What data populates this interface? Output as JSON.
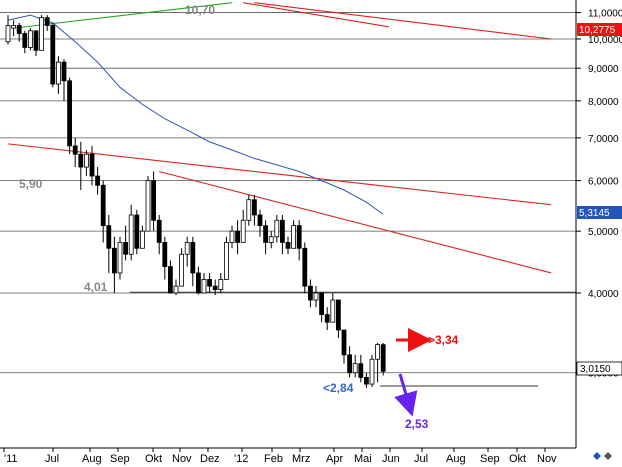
{
  "chart_data": {
    "type": "candlestick",
    "scale": "log",
    "grid": "horizontal",
    "colors": {
      "background": "#ffffff",
      "frame": "#000000",
      "grid": "#555555",
      "trend_red": "#dd2222",
      "trend_green": "#22aa22",
      "ma": "#3355bb",
      "candle": "#000000",
      "target_up": "#ee1111",
      "target_down": "#6622ee",
      "label_blue": "#3366cc",
      "gray_label": "#888888",
      "last_box": "#ee1111",
      "ma_box": "#2255bb",
      "current_box": "#ffffff"
    },
    "y_ticks": [
      "11,0000",
      "10,0000",
      "9,0000",
      "8,0000",
      "7,0000",
      "6,0000",
      "5,0000",
      "4,0000",
      "3,0000"
    ],
    "y_tick_values": [
      11,
      10,
      9,
      8,
      7,
      6,
      5,
      4,
      3
    ],
    "x_labels": [
      "'11",
      "Jul",
      "Aug",
      "Sep",
      "Okt",
      "Nov",
      "Dez",
      "'12",
      "Feb",
      "Mrz",
      "Apr",
      "Mai",
      "Jun",
      "Jul",
      "Aug",
      "Sep",
      "Okt",
      "Nov"
    ],
    "levels": [
      {
        "label": "10,70",
        "value": 10.7
      },
      {
        "label": "5,90",
        "value": 5.9
      },
      {
        "label": "4,01",
        "value": 4.01
      }
    ],
    "targets": {
      "up": "->3,34",
      "down": "2,53",
      "support": "<2,84"
    },
    "last_values": {
      "red": "10,2775",
      "blue": "5,3145",
      "current": "3,0150"
    },
    "weeks": 77,
    "candles": [
      [
        9.9,
        10.5,
        10.9,
        9.8
      ],
      [
        10.4,
        10.5,
        10.7,
        10.1
      ],
      [
        10.5,
        10.2,
        10.6,
        9.9
      ],
      [
        10.2,
        9.7,
        10.3,
        9.5
      ],
      [
        9.7,
        10.3,
        10.4,
        9.6
      ],
      [
        10.3,
        9.6,
        10.3,
        9.4
      ],
      [
        9.6,
        10.8,
        10.9,
        9.6
      ],
      [
        10.8,
        10.5,
        10.9,
        10.3
      ],
      [
        10.5,
        8.5,
        10.6,
        8.4
      ],
      [
        8.5,
        9.2,
        9.4,
        8.2
      ],
      [
        9.2,
        8.6,
        9.3,
        8.0
      ],
      [
        8.6,
        6.8,
        8.7,
        6.6
      ],
      [
        6.8,
        6.6,
        7.0,
        6.3
      ],
      [
        6.6,
        6.3,
        6.9,
        5.8
      ],
      [
        6.3,
        6.6,
        6.7,
        6.1
      ],
      [
        6.6,
        6.1,
        6.8,
        5.9
      ],
      [
        6.1,
        5.9,
        6.3,
        5.7
      ],
      [
        5.9,
        5.1,
        6.0,
        4.8
      ],
      [
        5.1,
        4.7,
        5.3,
        4.3
      ],
      [
        4.7,
        4.3,
        4.9,
        4.0
      ],
      [
        4.3,
        4.8,
        4.9,
        4.2
      ],
      [
        4.8,
        4.6,
        5.1,
        4.5
      ],
      [
        4.6,
        5.3,
        5.5,
        4.5
      ],
      [
        5.3,
        4.7,
        5.4,
        4.6
      ],
      [
        4.7,
        5.0,
        5.1,
        4.7
      ],
      [
        5.0,
        6.0,
        6.1,
        5.0
      ],
      [
        6.0,
        5.2,
        6.2,
        5.0
      ],
      [
        5.2,
        4.8,
        5.3,
        4.6
      ],
      [
        4.8,
        4.4,
        4.9,
        4.2
      ],
      [
        4.4,
        4.0,
        4.5,
        4.0
      ],
      [
        4.0,
        4.1,
        4.2,
        3.97
      ],
      [
        4.1,
        4.6,
        4.7,
        4.1
      ],
      [
        4.6,
        4.8,
        4.9,
        4.4
      ],
      [
        4.8,
        4.3,
        4.9,
        4.1
      ],
      [
        4.3,
        4.0,
        4.4,
        3.98
      ],
      [
        4.0,
        4.2,
        4.3,
        4.0
      ],
      [
        4.2,
        4.1,
        4.3,
        4.0
      ],
      [
        4.1,
        4.05,
        4.2,
        3.97
      ],
      [
        4.05,
        4.2,
        4.3,
        4.0
      ],
      [
        4.2,
        4.8,
        4.9,
        4.2
      ],
      [
        4.8,
        5.0,
        5.1,
        4.7
      ],
      [
        5.0,
        4.8,
        5.2,
        4.6
      ],
      [
        4.8,
        5.2,
        5.4,
        4.8
      ],
      [
        5.2,
        5.6,
        5.7,
        5.1
      ],
      [
        5.6,
        5.3,
        5.7,
        5.1
      ],
      [
        5.3,
        5.1,
        5.4,
        4.9
      ],
      [
        5.1,
        4.8,
        5.2,
        4.6
      ],
      [
        4.8,
        4.9,
        5.0,
        4.7
      ],
      [
        4.9,
        5.2,
        5.3,
        4.8
      ],
      [
        5.2,
        4.8,
        5.3,
        4.6
      ],
      [
        4.8,
        4.7,
        4.9,
        4.6
      ],
      [
        4.7,
        5.1,
        5.2,
        4.7
      ],
      [
        5.1,
        4.7,
        5.2,
        4.5
      ],
      [
        4.7,
        4.1,
        4.8,
        4.0
      ],
      [
        4.1,
        3.9,
        4.2,
        3.8
      ],
      [
        3.9,
        4.0,
        4.1,
        3.8
      ],
      [
        4.0,
        3.7,
        4.0,
        3.6
      ],
      [
        3.7,
        3.6,
        3.8,
        3.5
      ],
      [
        3.6,
        3.9,
        4.0,
        3.6
      ],
      [
        3.9,
        3.5,
        3.9,
        3.4
      ],
      [
        3.5,
        3.2,
        3.5,
        3.1
      ],
      [
        3.2,
        3.0,
        3.3,
        2.95
      ],
      [
        3.0,
        3.1,
        3.2,
        2.95
      ],
      [
        3.1,
        2.95,
        3.2,
        2.9
      ],
      [
        2.95,
        2.88,
        3.0,
        2.84
      ],
      [
        2.88,
        3.15,
        3.2,
        2.85
      ],
      [
        3.15,
        3.32,
        3.34,
        2.9
      ],
      [
        3.32,
        3.015,
        3.34,
        2.97
      ]
    ],
    "ma": [
      [
        0,
        10.7
      ],
      [
        4,
        10.9
      ],
      [
        8,
        10.6
      ],
      [
        12,
        9.9
      ],
      [
        16,
        9.2
      ],
      [
        20,
        8.4
      ],
      [
        24,
        7.9
      ],
      [
        28,
        7.5
      ],
      [
        32,
        7.2
      ],
      [
        36,
        6.9
      ],
      [
        40,
        6.7
      ],
      [
        44,
        6.5
      ],
      [
        48,
        6.35
      ],
      [
        52,
        6.2
      ],
      [
        56,
        6.0
      ],
      [
        60,
        5.8
      ],
      [
        64,
        5.55
      ],
      [
        67,
        5.3145
      ]
    ],
    "trendlines": [
      {
        "color": "trend_green",
        "p1": [
          1,
          10.4
        ],
        "p2": [
          40,
          11.4
        ]
      },
      {
        "color": "trend_red",
        "p1": [
          42,
          11.4
        ],
        "p2": [
          68,
          10.45
        ]
      },
      {
        "color": "trend_red",
        "p1": [
          44,
          11.4
        ],
        "p2": [
          97,
          10.0
        ]
      },
      {
        "color": "trend_red",
        "p1": [
          0,
          6.85
        ],
        "p2": [
          97,
          5.5
        ]
      },
      {
        "color": "trend_red",
        "p1": [
          27,
          6.2
        ],
        "p2": [
          97,
          4.3
        ]
      }
    ]
  }
}
